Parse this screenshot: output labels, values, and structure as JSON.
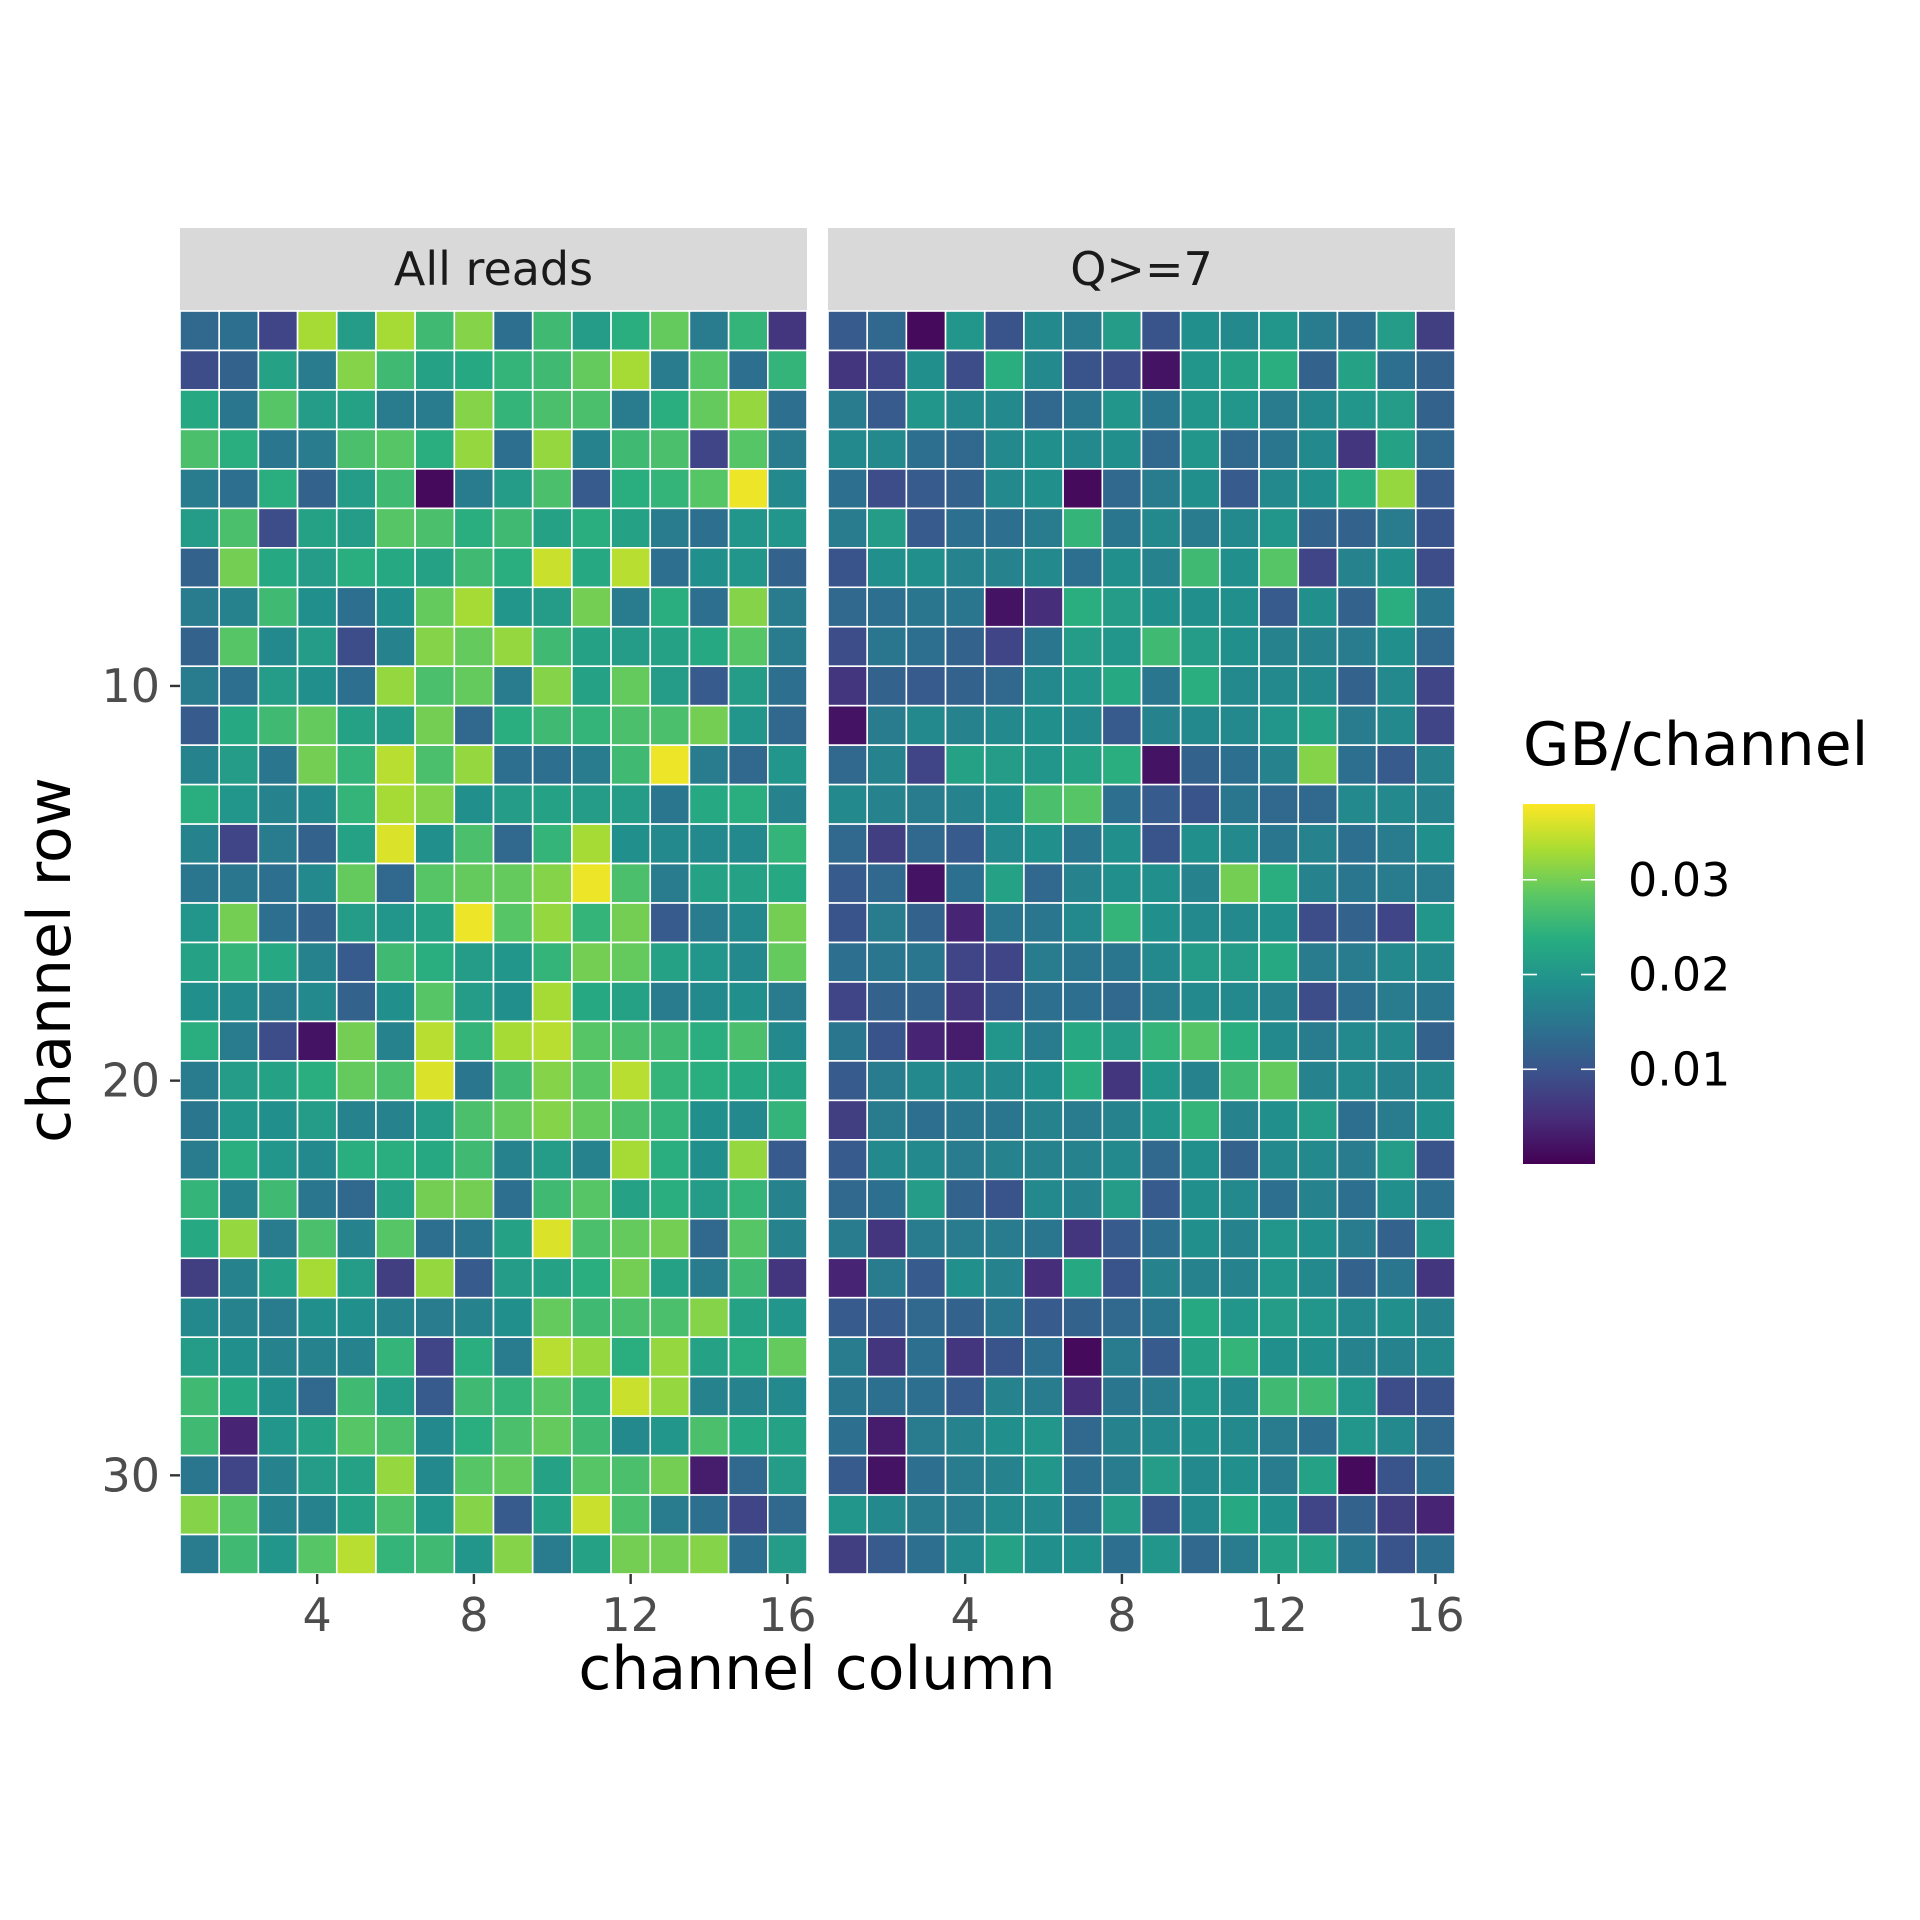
{
  "chart_data": {
    "type": "heatmap",
    "facets": [
      "All reads",
      "Q>=7"
    ],
    "xlabel": "channel column",
    "ylabel": "channel row",
    "x_ticks": [
      4,
      8,
      12,
      16
    ],
    "y_ticks": [
      10,
      20,
      30
    ],
    "xlim": [
      0.5,
      16.5
    ],
    "ylim": [
      0.5,
      32.5
    ],
    "y_reversed": true,
    "n_columns": 16,
    "n_rows": 32,
    "colorscale": "viridis",
    "color_limits": [
      0.0,
      0.038
    ],
    "legend": {
      "title": "GB/channel",
      "ticks": [
        0.01,
        0.02,
        0.03
      ],
      "tick_labels": [
        "0.01",
        "0.02",
        "0.03"
      ],
      "position": "right"
    },
    "values_all_reads": [
      [
        0.013,
        0.014,
        0.008,
        0.033,
        0.021,
        0.033,
        0.026,
        0.031,
        0.014,
        0.026,
        0.021,
        0.024,
        0.029,
        0.016,
        0.025,
        0.006
      ],
      [
        0.009,
        0.012,
        0.022,
        0.016,
        0.031,
        0.026,
        0.022,
        0.023,
        0.025,
        0.026,
        0.029,
        0.033,
        0.016,
        0.028,
        0.014,
        0.025
      ],
      [
        0.023,
        0.015,
        0.028,
        0.021,
        0.022,
        0.016,
        0.016,
        0.031,
        0.025,
        0.027,
        0.027,
        0.016,
        0.024,
        0.029,
        0.032,
        0.014
      ],
      [
        0.027,
        0.024,
        0.015,
        0.016,
        0.027,
        0.028,
        0.024,
        0.032,
        0.014,
        0.032,
        0.017,
        0.026,
        0.027,
        0.008,
        0.028,
        0.016
      ],
      [
        0.016,
        0.014,
        0.024,
        0.012,
        0.021,
        0.026,
        0.001,
        0.016,
        0.021,
        0.027,
        0.011,
        0.024,
        0.025,
        0.028,
        0.037,
        0.018
      ],
      [
        0.021,
        0.027,
        0.009,
        0.022,
        0.021,
        0.028,
        0.027,
        0.024,
        0.026,
        0.022,
        0.024,
        0.022,
        0.016,
        0.014,
        0.02,
        0.02
      ],
      [
        0.012,
        0.03,
        0.023,
        0.021,
        0.024,
        0.023,
        0.022,
        0.026,
        0.024,
        0.035,
        0.023,
        0.034,
        0.014,
        0.019,
        0.02,
        0.012
      ],
      [
        0.016,
        0.017,
        0.026,
        0.019,
        0.014,
        0.019,
        0.029,
        0.033,
        0.02,
        0.021,
        0.03,
        0.016,
        0.024,
        0.014,
        0.031,
        0.016
      ],
      [
        0.012,
        0.028,
        0.018,
        0.021,
        0.009,
        0.017,
        0.031,
        0.029,
        0.032,
        0.026,
        0.022,
        0.021,
        0.022,
        0.023,
        0.028,
        0.016
      ],
      [
        0.016,
        0.014,
        0.021,
        0.019,
        0.014,
        0.032,
        0.027,
        0.029,
        0.016,
        0.031,
        0.022,
        0.029,
        0.021,
        0.011,
        0.021,
        0.014
      ],
      [
        0.011,
        0.023,
        0.026,
        0.029,
        0.022,
        0.021,
        0.03,
        0.013,
        0.024,
        0.026,
        0.025,
        0.027,
        0.027,
        0.03,
        0.02,
        0.013
      ],
      [
        0.017,
        0.021,
        0.015,
        0.03,
        0.025,
        0.034,
        0.027,
        0.032,
        0.014,
        0.014,
        0.016,
        0.026,
        0.037,
        0.016,
        0.013,
        0.02
      ],
      [
        0.024,
        0.02,
        0.017,
        0.018,
        0.025,
        0.033,
        0.031,
        0.019,
        0.021,
        0.022,
        0.021,
        0.021,
        0.015,
        0.023,
        0.024,
        0.017
      ],
      [
        0.017,
        0.008,
        0.016,
        0.012,
        0.022,
        0.036,
        0.019,
        0.027,
        0.013,
        0.025,
        0.033,
        0.019,
        0.018,
        0.018,
        0.018,
        0.025
      ],
      [
        0.015,
        0.015,
        0.014,
        0.018,
        0.029,
        0.013,
        0.028,
        0.029,
        0.029,
        0.031,
        0.037,
        0.027,
        0.016,
        0.022,
        0.022,
        0.023
      ],
      [
        0.02,
        0.03,
        0.014,
        0.012,
        0.021,
        0.02,
        0.022,
        0.037,
        0.028,
        0.032,
        0.025,
        0.03,
        0.011,
        0.016,
        0.018,
        0.03
      ],
      [
        0.022,
        0.025,
        0.023,
        0.017,
        0.011,
        0.026,
        0.024,
        0.021,
        0.02,
        0.025,
        0.03,
        0.029,
        0.022,
        0.02,
        0.018,
        0.029
      ],
      [
        0.019,
        0.018,
        0.016,
        0.018,
        0.012,
        0.019,
        0.028,
        0.021,
        0.019,
        0.033,
        0.023,
        0.022,
        0.016,
        0.018,
        0.019,
        0.016
      ],
      [
        0.024,
        0.016,
        0.009,
        0.002,
        0.03,
        0.017,
        0.034,
        0.025,
        0.033,
        0.034,
        0.028,
        0.027,
        0.026,
        0.024,
        0.027,
        0.018
      ],
      [
        0.016,
        0.021,
        0.022,
        0.024,
        0.029,
        0.027,
        0.036,
        0.015,
        0.026,
        0.031,
        0.028,
        0.034,
        0.025,
        0.024,
        0.023,
        0.022
      ],
      [
        0.015,
        0.02,
        0.019,
        0.021,
        0.017,
        0.017,
        0.021,
        0.027,
        0.029,
        0.031,
        0.029,
        0.027,
        0.025,
        0.019,
        0.018,
        0.025
      ],
      [
        0.016,
        0.024,
        0.02,
        0.018,
        0.024,
        0.024,
        0.023,
        0.026,
        0.017,
        0.021,
        0.017,
        0.033,
        0.024,
        0.019,
        0.032,
        0.011
      ],
      [
        0.025,
        0.017,
        0.026,
        0.015,
        0.013,
        0.022,
        0.03,
        0.03,
        0.014,
        0.026,
        0.028,
        0.022,
        0.024,
        0.021,
        0.025,
        0.017
      ],
      [
        0.023,
        0.032,
        0.016,
        0.027,
        0.017,
        0.028,
        0.014,
        0.015,
        0.022,
        0.036,
        0.027,
        0.029,
        0.03,
        0.013,
        0.028,
        0.017
      ],
      [
        0.007,
        0.017,
        0.022,
        0.033,
        0.021,
        0.007,
        0.032,
        0.011,
        0.021,
        0.022,
        0.024,
        0.03,
        0.022,
        0.016,
        0.026,
        0.006
      ],
      [
        0.018,
        0.017,
        0.016,
        0.019,
        0.019,
        0.017,
        0.016,
        0.017,
        0.019,
        0.029,
        0.026,
        0.027,
        0.027,
        0.031,
        0.022,
        0.02
      ],
      [
        0.021,
        0.019,
        0.017,
        0.017,
        0.017,
        0.025,
        0.008,
        0.024,
        0.016,
        0.034,
        0.032,
        0.024,
        0.032,
        0.022,
        0.024,
        0.029
      ],
      [
        0.026,
        0.023,
        0.019,
        0.013,
        0.026,
        0.021,
        0.011,
        0.026,
        0.025,
        0.028,
        0.025,
        0.035,
        0.032,
        0.017,
        0.017,
        0.018
      ],
      [
        0.026,
        0.004,
        0.02,
        0.022,
        0.028,
        0.027,
        0.018,
        0.024,
        0.027,
        0.029,
        0.026,
        0.018,
        0.02,
        0.027,
        0.023,
        0.022
      ],
      [
        0.015,
        0.008,
        0.017,
        0.021,
        0.022,
        0.032,
        0.018,
        0.028,
        0.029,
        0.022,
        0.028,
        0.027,
        0.03,
        0.003,
        0.013,
        0.021
      ],
      [
        0.031,
        0.028,
        0.017,
        0.017,
        0.022,
        0.027,
        0.02,
        0.031,
        0.011,
        0.022,
        0.035,
        0.027,
        0.016,
        0.014,
        0.008,
        0.013
      ],
      [
        0.016,
        0.026,
        0.02,
        0.028,
        0.034,
        0.025,
        0.026,
        0.02,
        0.031,
        0.016,
        0.022,
        0.03,
        0.03,
        0.031,
        0.014,
        0.021
      ]
    ],
    "values_q7": [
      [
        0.011,
        0.013,
        0.001,
        0.02,
        0.01,
        0.018,
        0.016,
        0.021,
        0.01,
        0.019,
        0.018,
        0.02,
        0.016,
        0.014,
        0.021,
        0.007
      ],
      [
        0.006,
        0.008,
        0.019,
        0.009,
        0.024,
        0.018,
        0.01,
        0.009,
        0.002,
        0.02,
        0.022,
        0.024,
        0.012,
        0.022,
        0.014,
        0.012
      ],
      [
        0.016,
        0.011,
        0.02,
        0.018,
        0.018,
        0.013,
        0.015,
        0.02,
        0.015,
        0.02,
        0.02,
        0.016,
        0.018,
        0.02,
        0.021,
        0.012
      ],
      [
        0.018,
        0.018,
        0.014,
        0.013,
        0.018,
        0.019,
        0.018,
        0.019,
        0.013,
        0.02,
        0.013,
        0.015,
        0.018,
        0.006,
        0.022,
        0.013
      ],
      [
        0.014,
        0.009,
        0.011,
        0.012,
        0.018,
        0.019,
        0.001,
        0.013,
        0.016,
        0.019,
        0.011,
        0.018,
        0.019,
        0.024,
        0.032,
        0.011
      ],
      [
        0.016,
        0.021,
        0.011,
        0.014,
        0.014,
        0.016,
        0.025,
        0.015,
        0.018,
        0.016,
        0.018,
        0.02,
        0.012,
        0.012,
        0.016,
        0.01
      ],
      [
        0.01,
        0.019,
        0.019,
        0.017,
        0.017,
        0.018,
        0.014,
        0.019,
        0.017,
        0.026,
        0.019,
        0.028,
        0.008,
        0.017,
        0.019,
        0.009
      ],
      [
        0.013,
        0.014,
        0.015,
        0.015,
        0.002,
        0.005,
        0.024,
        0.021,
        0.019,
        0.019,
        0.019,
        0.011,
        0.019,
        0.012,
        0.024,
        0.015
      ],
      [
        0.009,
        0.015,
        0.014,
        0.012,
        0.008,
        0.015,
        0.021,
        0.02,
        0.026,
        0.021,
        0.019,
        0.017,
        0.017,
        0.016,
        0.019,
        0.013
      ],
      [
        0.006,
        0.012,
        0.011,
        0.012,
        0.013,
        0.018,
        0.02,
        0.023,
        0.015,
        0.024,
        0.018,
        0.018,
        0.018,
        0.012,
        0.018,
        0.008
      ],
      [
        0.002,
        0.016,
        0.018,
        0.017,
        0.018,
        0.019,
        0.018,
        0.011,
        0.017,
        0.018,
        0.018,
        0.02,
        0.022,
        0.016,
        0.018,
        0.008
      ],
      [
        0.013,
        0.017,
        0.008,
        0.022,
        0.021,
        0.02,
        0.022,
        0.024,
        0.002,
        0.012,
        0.014,
        0.017,
        0.031,
        0.014,
        0.011,
        0.017
      ],
      [
        0.018,
        0.017,
        0.016,
        0.017,
        0.019,
        0.027,
        0.028,
        0.014,
        0.011,
        0.01,
        0.015,
        0.013,
        0.013,
        0.018,
        0.018,
        0.017
      ],
      [
        0.013,
        0.007,
        0.013,
        0.011,
        0.018,
        0.019,
        0.015,
        0.019,
        0.01,
        0.019,
        0.018,
        0.015,
        0.017,
        0.014,
        0.016,
        0.019
      ],
      [
        0.011,
        0.013,
        0.002,
        0.014,
        0.022,
        0.013,
        0.017,
        0.019,
        0.019,
        0.017,
        0.03,
        0.024,
        0.017,
        0.015,
        0.016,
        0.016
      ],
      [
        0.01,
        0.016,
        0.012,
        0.004,
        0.015,
        0.015,
        0.018,
        0.025,
        0.019,
        0.018,
        0.018,
        0.019,
        0.009,
        0.012,
        0.008,
        0.02
      ],
      [
        0.014,
        0.015,
        0.015,
        0.008,
        0.008,
        0.016,
        0.015,
        0.015,
        0.018,
        0.021,
        0.021,
        0.023,
        0.016,
        0.016,
        0.018,
        0.018
      ],
      [
        0.008,
        0.012,
        0.012,
        0.006,
        0.01,
        0.014,
        0.014,
        0.013,
        0.016,
        0.018,
        0.018,
        0.017,
        0.009,
        0.014,
        0.016,
        0.015
      ],
      [
        0.015,
        0.01,
        0.004,
        0.003,
        0.02,
        0.016,
        0.023,
        0.021,
        0.025,
        0.028,
        0.024,
        0.018,
        0.016,
        0.018,
        0.018,
        0.012
      ],
      [
        0.011,
        0.016,
        0.018,
        0.018,
        0.018,
        0.019,
        0.024,
        0.006,
        0.02,
        0.017,
        0.026,
        0.029,
        0.017,
        0.018,
        0.017,
        0.018
      ],
      [
        0.007,
        0.016,
        0.014,
        0.015,
        0.015,
        0.017,
        0.016,
        0.017,
        0.02,
        0.025,
        0.017,
        0.019,
        0.021,
        0.014,
        0.016,
        0.019
      ],
      [
        0.011,
        0.018,
        0.018,
        0.016,
        0.017,
        0.017,
        0.017,
        0.018,
        0.013,
        0.019,
        0.012,
        0.018,
        0.018,
        0.016,
        0.021,
        0.01
      ],
      [
        0.013,
        0.014,
        0.021,
        0.012,
        0.01,
        0.018,
        0.017,
        0.021,
        0.011,
        0.019,
        0.018,
        0.014,
        0.017,
        0.014,
        0.019,
        0.014
      ],
      [
        0.016,
        0.006,
        0.016,
        0.016,
        0.016,
        0.015,
        0.006,
        0.011,
        0.014,
        0.019,
        0.017,
        0.02,
        0.019,
        0.016,
        0.012,
        0.02
      ],
      [
        0.004,
        0.016,
        0.011,
        0.019,
        0.017,
        0.005,
        0.023,
        0.01,
        0.017,
        0.017,
        0.017,
        0.02,
        0.018,
        0.012,
        0.015,
        0.006
      ],
      [
        0.011,
        0.011,
        0.013,
        0.012,
        0.015,
        0.011,
        0.012,
        0.013,
        0.015,
        0.023,
        0.02,
        0.021,
        0.02,
        0.018,
        0.019,
        0.017
      ],
      [
        0.016,
        0.006,
        0.014,
        0.006,
        0.01,
        0.014,
        0.001,
        0.016,
        0.011,
        0.022,
        0.025,
        0.019,
        0.019,
        0.017,
        0.017,
        0.018
      ],
      [
        0.015,
        0.014,
        0.014,
        0.011,
        0.017,
        0.016,
        0.005,
        0.015,
        0.016,
        0.02,
        0.018,
        0.026,
        0.026,
        0.02,
        0.009,
        0.01
      ],
      [
        0.014,
        0.003,
        0.016,
        0.017,
        0.019,
        0.02,
        0.013,
        0.017,
        0.018,
        0.019,
        0.018,
        0.016,
        0.014,
        0.02,
        0.018,
        0.013
      ],
      [
        0.011,
        0.002,
        0.014,
        0.016,
        0.017,
        0.02,
        0.014,
        0.016,
        0.021,
        0.018,
        0.019,
        0.016,
        0.022,
        0.001,
        0.01,
        0.014
      ],
      [
        0.02,
        0.018,
        0.016,
        0.016,
        0.018,
        0.018,
        0.014,
        0.021,
        0.01,
        0.018,
        0.023,
        0.019,
        0.008,
        0.012,
        0.007,
        0.004
      ],
      [
        0.007,
        0.011,
        0.014,
        0.018,
        0.022,
        0.019,
        0.019,
        0.014,
        0.02,
        0.013,
        0.016,
        0.022,
        0.022,
        0.015,
        0.01,
        0.014
      ]
    ]
  }
}
